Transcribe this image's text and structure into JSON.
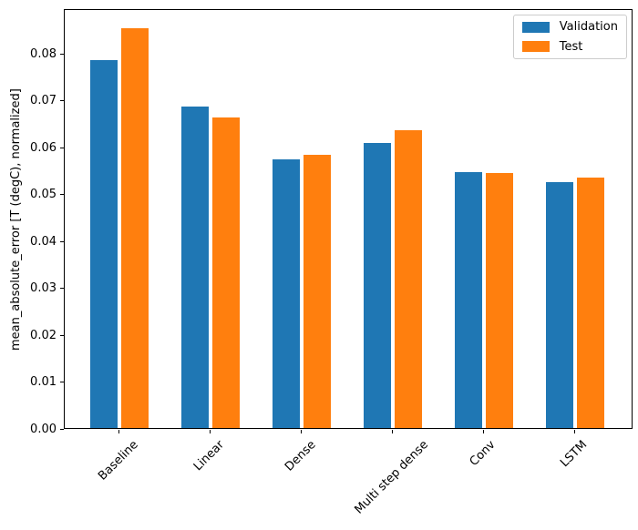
{
  "chart_data": {
    "type": "bar",
    "categories": [
      "Baseline",
      "Linear",
      "Dense",
      "Multi step dense",
      "Conv",
      "LSTM"
    ],
    "series": [
      {
        "name": "Validation",
        "color": "#1f77b4",
        "values": [
          0.0785,
          0.0686,
          0.0572,
          0.0607,
          0.0546,
          0.0524
        ]
      },
      {
        "name": "Test",
        "color": "#ff7f0e",
        "values": [
          0.0852,
          0.0663,
          0.0583,
          0.0634,
          0.0543,
          0.0534
        ]
      }
    ],
    "title": "",
    "xlabel": "",
    "ylabel": "mean_absolute_error [T (degC), normalized]",
    "ylim": [
      0,
      0.0895
    ],
    "yticks": [
      0.0,
      0.01,
      0.02,
      0.03,
      0.04,
      0.05,
      0.06,
      0.07,
      0.08
    ],
    "ytick_labels": [
      "0.00",
      "0.01",
      "0.02",
      "0.03",
      "0.04",
      "0.05",
      "0.06",
      "0.07",
      "0.08"
    ],
    "xtick_rotation_deg": 45,
    "grid": false,
    "axes_color": "#000000",
    "legend": {
      "position": "upper right",
      "entries": [
        "Validation",
        "Test"
      ]
    }
  }
}
